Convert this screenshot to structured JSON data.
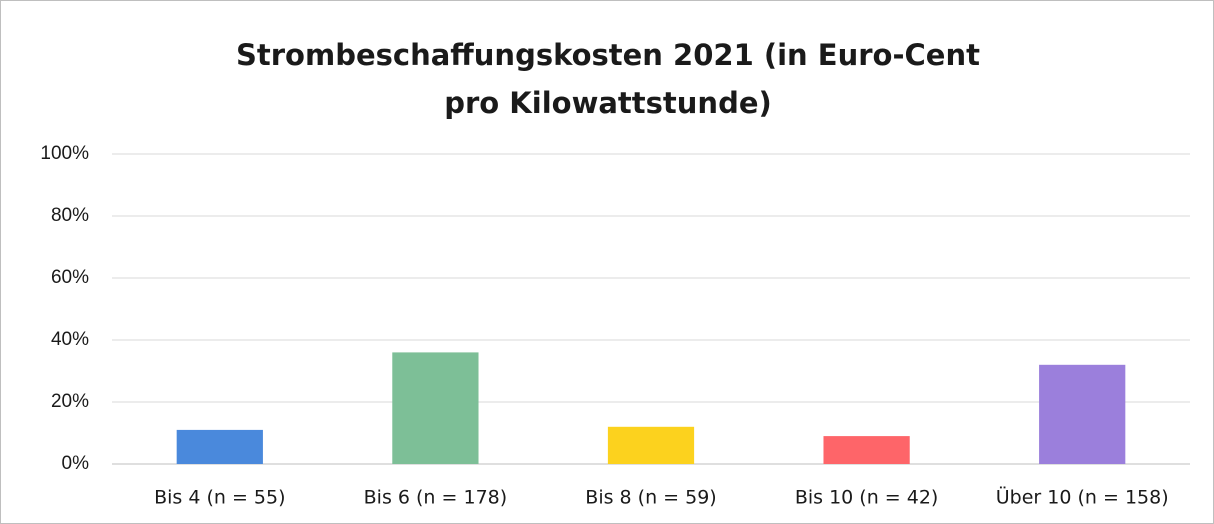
{
  "chart_data": {
    "type": "bar",
    "title": "Strombeschaffungskosten 2021 (in Euro-Cent pro Kilowattstunde)",
    "categories": [
      "Bis 4 (n = 55)",
      "Bis 6 (n = 178)",
      "Bis 8 (n = 59)",
      "Bis 10 (n = 42)",
      "Über 10 (n = 158)"
    ],
    "values": [
      11,
      36,
      12,
      9,
      32
    ],
    "colors": [
      "#4a89dc",
      "#7dbf97",
      "#fcd21e",
      "#fe6569",
      "#9b7fdc"
    ],
    "ylim": [
      0,
      100
    ],
    "yticks": [
      {
        "value": 0,
        "label": "0%"
      },
      {
        "value": 20,
        "label": "20%"
      },
      {
        "value": 40,
        "label": "40%"
      },
      {
        "value": 60,
        "label": "60%"
      },
      {
        "value": 80,
        "label": "80%"
      },
      {
        "value": 100,
        "label": "100%"
      }
    ],
    "grid": true
  }
}
